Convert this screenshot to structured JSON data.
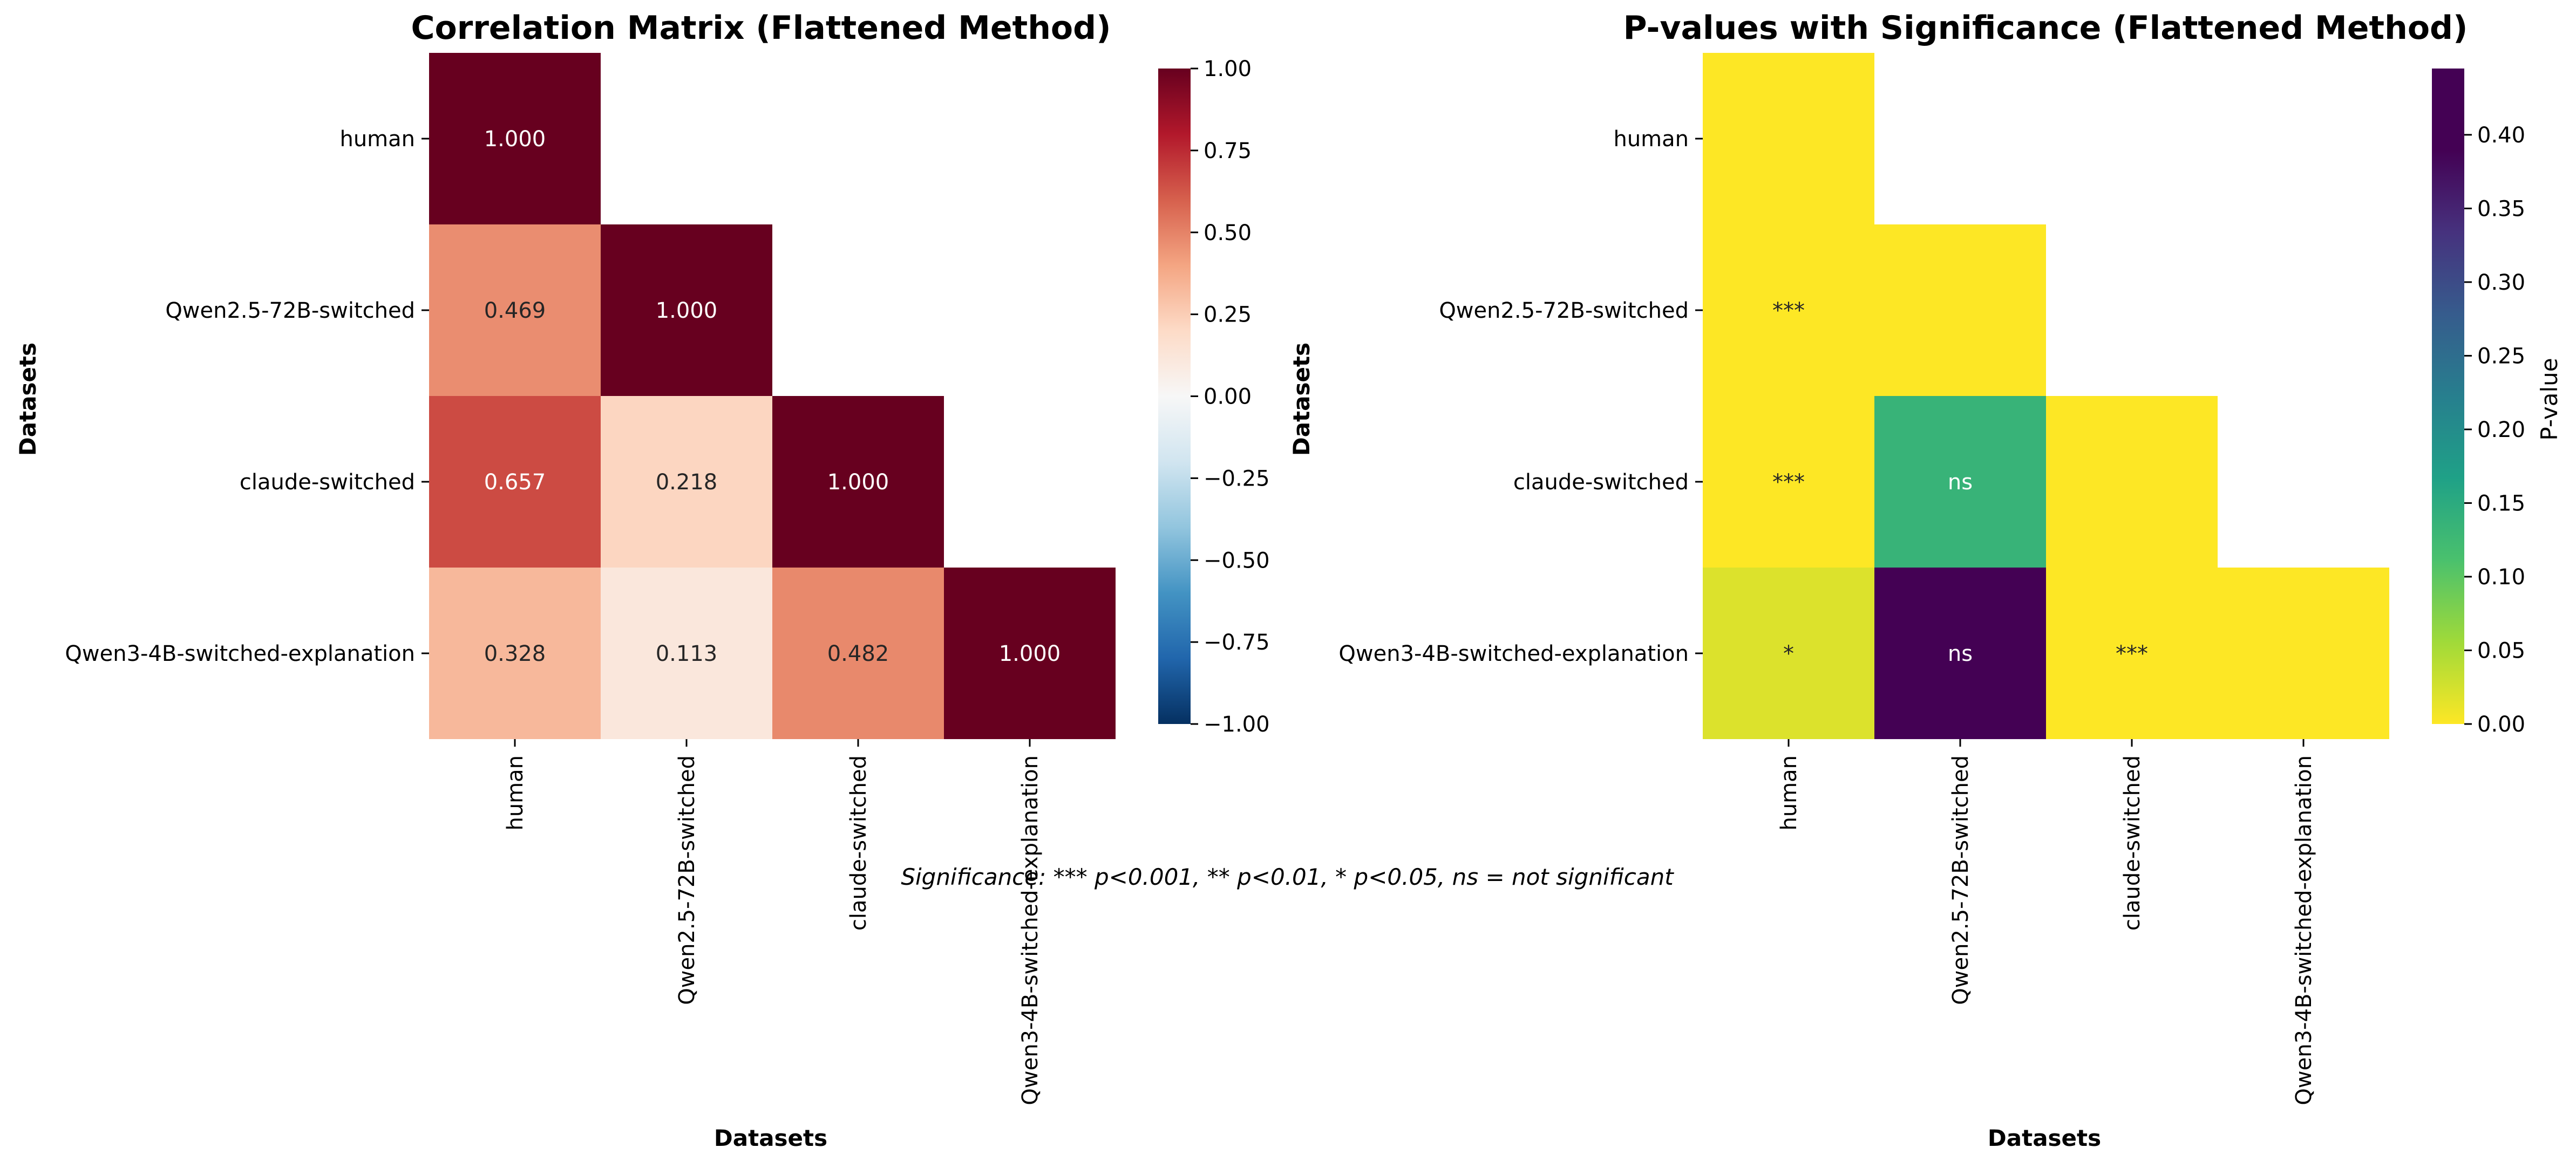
{
  "chart_data": [
    {
      "type": "heatmap",
      "title": "Correlation Matrix (Flattened Method)",
      "xlabel": "Datasets",
      "ylabel": "Datasets",
      "categories": [
        "human",
        "Qwen2.5-72B-switched",
        "claude-switched",
        "Qwen3-4B-switched-explanation"
      ],
      "values": [
        [
          1.0,
          null,
          null,
          null
        ],
        [
          0.469,
          1.0,
          null,
          null
        ],
        [
          0.657,
          0.218,
          1.0,
          null
        ],
        [
          0.328,
          0.113,
          0.482,
          1.0
        ]
      ],
      "cell_labels": [
        [
          "1.000",
          "",
          "",
          ""
        ],
        [
          "0.469",
          "1.000",
          "",
          ""
        ],
        [
          "0.657",
          "0.218",
          "1.000",
          ""
        ],
        [
          "0.328",
          "0.113",
          "0.482",
          "1.000"
        ]
      ],
      "mask": "upper triangle hidden",
      "colormap": "RdBu_r",
      "colorbar": {
        "label": "",
        "range": [
          -1.0,
          1.0
        ],
        "ticks": [
          1.0,
          0.75,
          0.5,
          0.25,
          0.0,
          -0.25,
          -0.5,
          -0.75,
          -1.0
        ],
        "tick_labels": [
          "1.00",
          "0.75",
          "0.50",
          "0.25",
          "0.00",
          "−0.25",
          "−0.50",
          "−0.75",
          "−1.00"
        ]
      },
      "grid": false
    },
    {
      "type": "heatmap",
      "title": "P-values with Significance (Flattened Method)",
      "xlabel": "Datasets",
      "ylabel": "Datasets",
      "categories": [
        "human",
        "Qwen2.5-72B-switched",
        "claude-switched",
        "Qwen3-4B-switched-explanation"
      ],
      "values": [
        [
          0.0,
          null,
          null,
          null
        ],
        [
          0.0,
          0.0,
          null,
          null
        ],
        [
          0.0,
          0.135,
          0.0,
          null
        ],
        [
          0.02,
          0.445,
          0.0,
          0.0
        ]
      ],
      "cell_labels": [
        [
          "",
          "",
          "",
          ""
        ],
        [
          "***",
          "",
          "",
          ""
        ],
        [
          "***",
          "ns",
          "",
          ""
        ],
        [
          "*",
          "ns",
          "***",
          ""
        ]
      ],
      "mask": "upper triangle hidden",
      "colormap": "viridis_r",
      "colorbar": {
        "label": "P-value",
        "range": [
          0.0,
          0.445
        ],
        "ticks": [
          0.4,
          0.35,
          0.3,
          0.25,
          0.2,
          0.15,
          0.1,
          0.05,
          0.0
        ],
        "tick_labels": [
          "0.40",
          "0.35",
          "0.30",
          "0.25",
          "0.20",
          "0.15",
          "0.10",
          "0.05",
          "0.00"
        ]
      },
      "grid": false
    }
  ],
  "note": "Significance: *** p<0.001, ** p<0.01, * p<0.05, ns = not significant"
}
